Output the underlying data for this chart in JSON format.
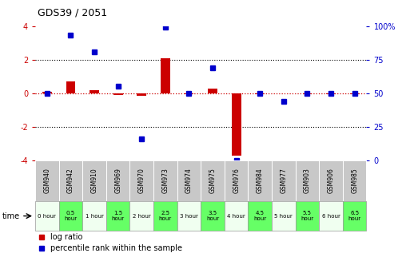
{
  "title": "GDS39 / 2051",
  "samples": [
    "GSM940",
    "GSM942",
    "GSM910",
    "GSM969",
    "GSM970",
    "GSM973",
    "GSM974",
    "GSM975",
    "GSM976",
    "GSM984",
    "GSM977",
    "GSM903",
    "GSM906",
    "GSM985"
  ],
  "time_labels": [
    "0 hour",
    "0.5\nhour",
    "1 hour",
    "1.5\nhour",
    "2 hour",
    "2.5\nhour",
    "3 hour",
    "3.5\nhour",
    "4 hour",
    "4.5\nhour",
    "5 hour",
    "5.5\nhour",
    "6 hour",
    "6.5\nhour"
  ],
  "time_colors": [
    "#f0fff0",
    "#66ff66",
    "#f0fff0",
    "#66ff66",
    "#f0fff0",
    "#66ff66",
    "#f0fff0",
    "#66ff66",
    "#f0fff0",
    "#66ff66",
    "#f0fff0",
    "#66ff66",
    "#f0fff0",
    "#66ff66"
  ],
  "log_ratio": [
    0.1,
    0.7,
    0.2,
    -0.1,
    -0.15,
    2.1,
    -0.05,
    0.3,
    -3.7,
    -0.05,
    -0.02,
    -0.05,
    -0.05,
    -0.05
  ],
  "percentile_pct": [
    50,
    93,
    81,
    55,
    16,
    99,
    50,
    69,
    0,
    50,
    44,
    50,
    50,
    50
  ],
  "ylim": [
    -4,
    4
  ],
  "yticks_left": [
    -4,
    -2,
    0,
    2,
    4
  ],
  "yticks_right": [
    0,
    25,
    50,
    75,
    100
  ],
  "bar_color": "#cc0000",
  "dot_color": "#0000cc",
  "gsm_bg": "#c8c8c8",
  "left_tick_color": "#cc0000",
  "right_tick_color": "#0000cc"
}
